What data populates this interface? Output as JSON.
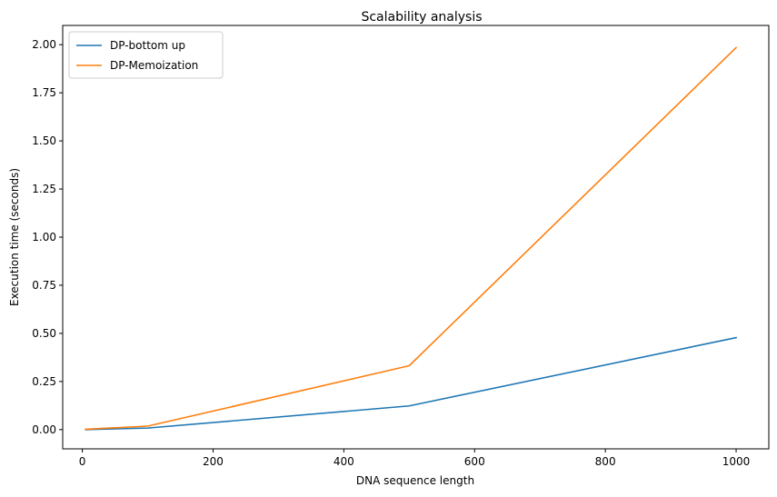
{
  "chart_data": {
    "type": "line",
    "title": "Scalability analysis",
    "xlabel": "DNA sequence length",
    "ylabel": "Execution time (seconds)",
    "xlim": [
      -30,
      1050
    ],
    "ylim": [
      -0.1,
      2.1
    ],
    "x_ticks": [
      0,
      200,
      400,
      600,
      800,
      1000
    ],
    "x_tick_labels": [
      "0",
      "200",
      "400",
      "600",
      "800",
      "1000"
    ],
    "y_ticks": [
      0.0,
      0.25,
      0.5,
      0.75,
      1.0,
      1.25,
      1.5,
      1.75,
      2.0
    ],
    "y_tick_labels": [
      "0.00",
      "0.25",
      "0.50",
      "0.75",
      "1.00",
      "1.25",
      "1.50",
      "1.75",
      "2.00"
    ],
    "grid": false,
    "legend_position": "top-left",
    "x": [
      5,
      100,
      500,
      1000
    ],
    "series": [
      {
        "name": "DP-bottom up",
        "color": "#1f77b4",
        "values": [
          0.0,
          0.008,
          0.123,
          0.478
        ]
      },
      {
        "name": "DP-Memoization",
        "color": "#ff7f0e",
        "values": [
          0.002,
          0.018,
          0.332,
          1.985
        ]
      }
    ]
  }
}
